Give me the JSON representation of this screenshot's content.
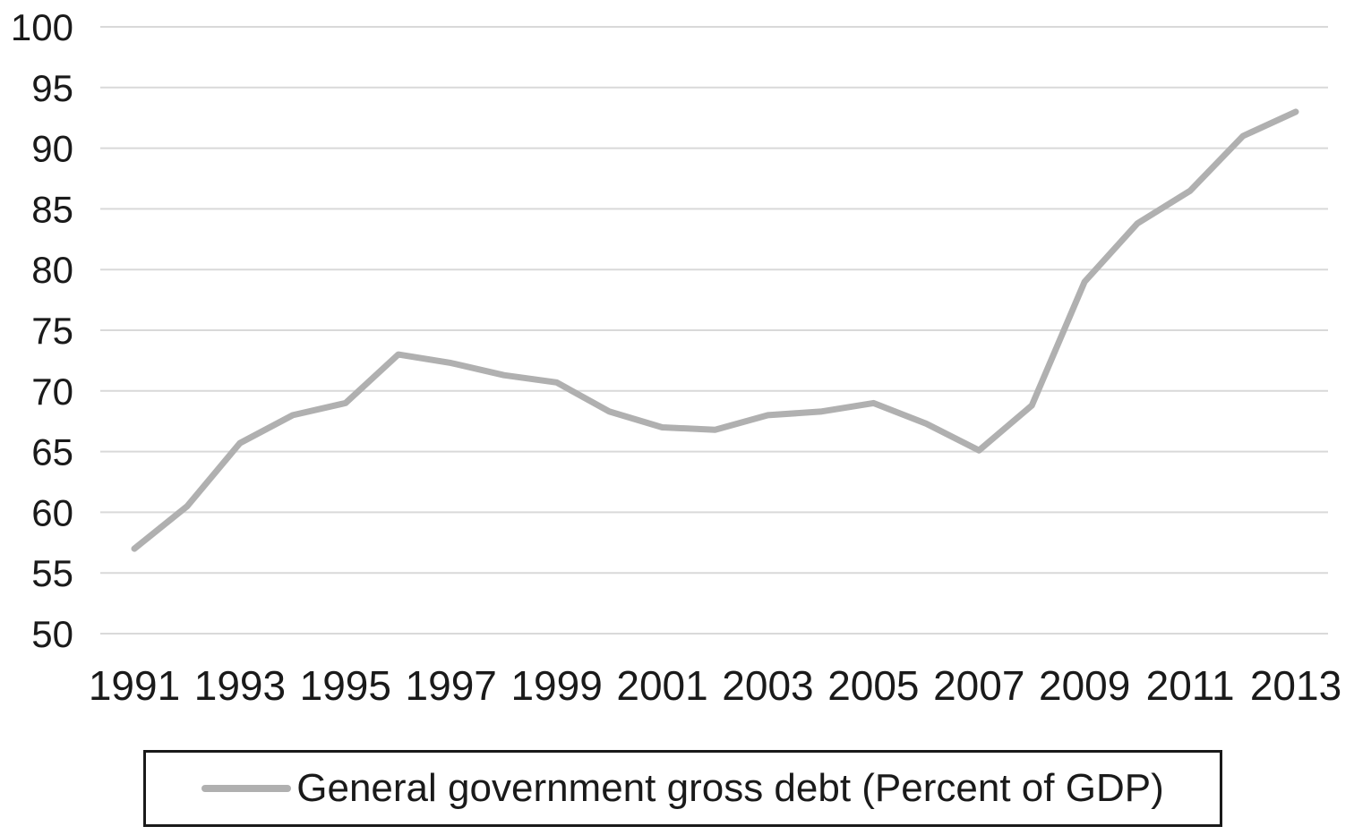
{
  "chart_data": {
    "type": "line",
    "x": [
      1991,
      1992,
      1993,
      1994,
      1995,
      1996,
      1997,
      1998,
      1999,
      2000,
      2001,
      2002,
      2003,
      2004,
      2005,
      2006,
      2007,
      2008,
      2009,
      2010,
      2011,
      2012,
      2013
    ],
    "series": [
      {
        "name": "General government gross debt (Percent of GDP)",
        "values": [
          57,
          60.5,
          65.7,
          68,
          69,
          73,
          72.3,
          71.3,
          70.7,
          68.3,
          67,
          66.8,
          68,
          68.3,
          69,
          67.3,
          65.1,
          68.8,
          79,
          83.8,
          86.5,
          91,
          93
        ]
      }
    ],
    "title": "",
    "xlabel": "",
    "ylabel": "",
    "ylim": [
      50,
      100
    ],
    "ytick_step": 5,
    "ytick_labels": [
      "50",
      "55",
      "60",
      "65",
      "70",
      "75",
      "80",
      "85",
      "90",
      "95",
      "100"
    ],
    "xtick_labels": [
      "1991",
      "1993",
      "1995",
      "1997",
      "1999",
      "2001",
      "2003",
      "2005",
      "2007",
      "2009",
      "2011",
      "2013"
    ],
    "grid": true,
    "legend_position": "bottom",
    "colors": {
      "line": "#b0b0b0",
      "grid": "#d9d9d9",
      "axis_text": "#1a1a1a",
      "legend_border": "#1a1a1a",
      "background": "#ffffff"
    }
  },
  "legend": {
    "label": "General government gross debt (Percent of GDP)"
  }
}
